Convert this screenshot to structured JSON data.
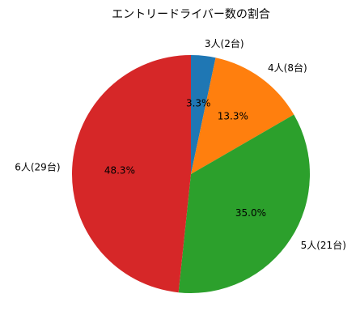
{
  "chart_data": {
    "type": "pie",
    "title": "エントリードライバー数の割合",
    "slices": [
      {
        "label": "3人(2台)",
        "value": 2,
        "percent_label": "3.3%",
        "color": "#1f77b4"
      },
      {
        "label": "4人(8台)",
        "value": 8,
        "percent_label": "13.3%",
        "color": "#ff7f0e"
      },
      {
        "label": "5人(21台)",
        "value": 21,
        "percent_label": "35.0%",
        "color": "#2ca02c"
      },
      {
        "label": "6人(29台)",
        "value": 29,
        "percent_label": "48.3%",
        "color": "#d62728"
      }
    ],
    "start_angle_deg": 90,
    "direction": "clockwise"
  }
}
